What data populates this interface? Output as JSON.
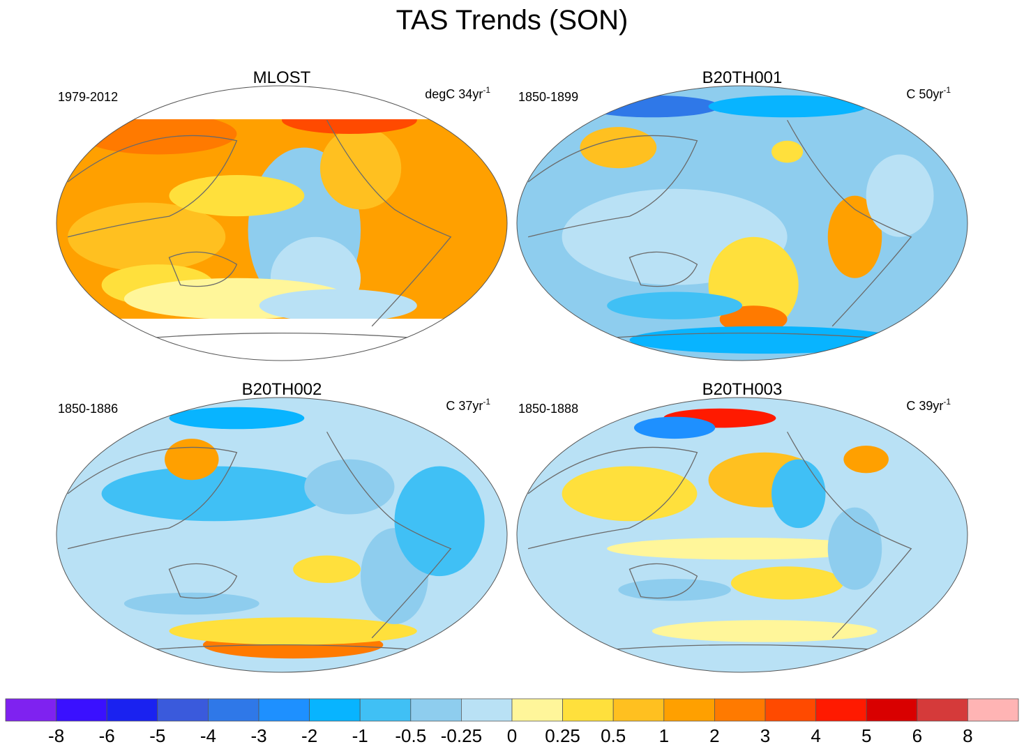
{
  "title": "TAS Trends (SON)",
  "panels": [
    {
      "title": "MLOST",
      "period": "1979-2012",
      "units": {
        "text": "degC 34yr",
        "sup": "-1"
      }
    },
    {
      "title": "B20TH001",
      "period": "1850-1899",
      "units": {
        "text": "C 50yr",
        "sup": "-1"
      }
    },
    {
      "title": "B20TH002",
      "period": "1850-1886",
      "units": {
        "text": "C 37yr",
        "sup": "-1"
      }
    },
    {
      "title": "B20TH003",
      "period": "1850-1888",
      "units": {
        "text": "C 39yr",
        "sup": "-1"
      }
    }
  ],
  "colorbar": {
    "colors": [
      "#7f22f0",
      "#3a10ff",
      "#1a22f0",
      "#3a5adc",
      "#2f78e8",
      "#1e90ff",
      "#08b4ff",
      "#40c0f5",
      "#8ecdee",
      "#b9e1f5",
      "#fff69a",
      "#ffe03c",
      "#ffc020",
      "#ffa000",
      "#ff7a00",
      "#ff4a00",
      "#ff1a00",
      "#d90000",
      "#d53a3a",
      "#ffb4b4"
    ],
    "labels": [
      -8,
      -6,
      -5,
      -4,
      -3,
      -2,
      -1,
      -0.5,
      -0.25,
      0,
      0.25,
      0.5,
      1,
      2,
      3,
      4,
      5,
      6,
      8
    ]
  }
}
